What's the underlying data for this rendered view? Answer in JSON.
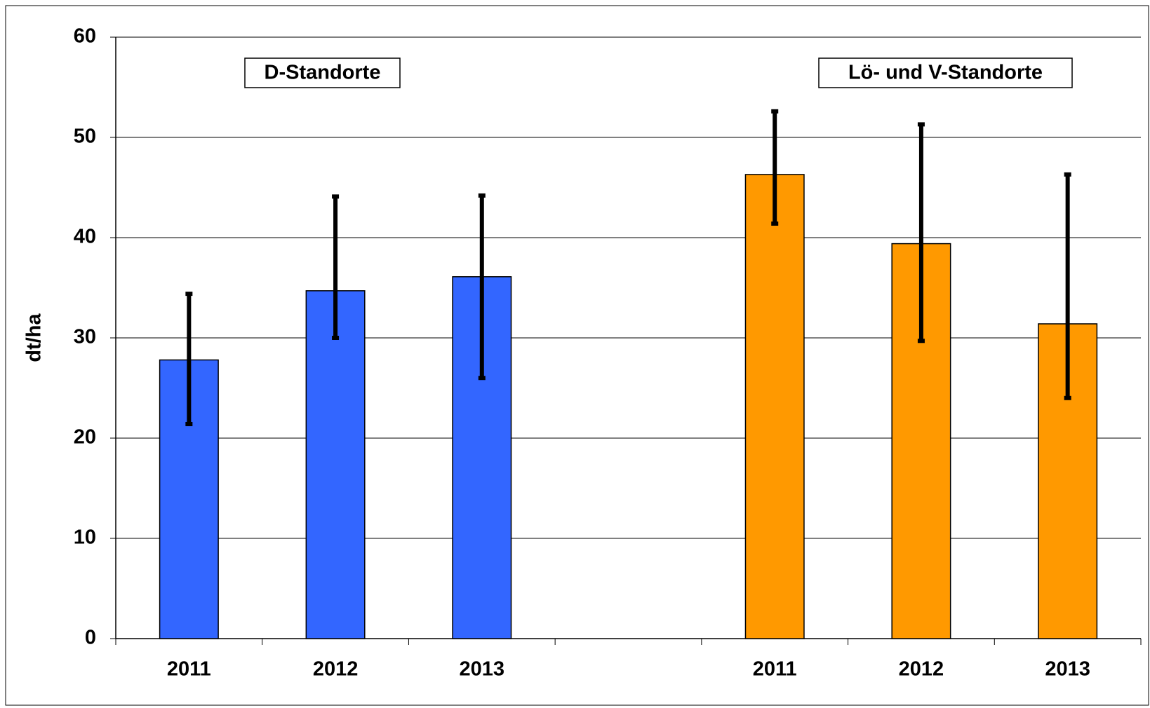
{
  "chart_data": {
    "type": "bar",
    "ylabel": "dt/ha",
    "annotations": [
      "D-Standorte",
      "Lö- und V-Standorte"
    ],
    "categories": [
      "2011",
      "2012",
      "2013",
      null,
      "2011",
      "2012",
      "2013"
    ],
    "series": [
      {
        "color": "#3366ff",
        "values": [
          27.8,
          34.7,
          36.1,
          null,
          null,
          null,
          null
        ],
        "error_low": [
          21.4,
          30.0,
          26.0,
          null,
          null,
          null,
          null
        ],
        "error_high": [
          34.4,
          44.1,
          44.2,
          null,
          null,
          null,
          null
        ]
      },
      {
        "color": "#ff9900",
        "values": [
          null,
          null,
          null,
          null,
          46.3,
          39.4,
          31.4
        ],
        "error_low": [
          null,
          null,
          null,
          null,
          41.4,
          29.7,
          24.0
        ],
        "error_high": [
          null,
          null,
          null,
          null,
          52.6,
          51.3,
          46.3
        ]
      }
    ],
    "ylim": [
      0,
      60
    ],
    "yticks": [
      0,
      10,
      20,
      30,
      40,
      50,
      60
    ],
    "grid": true
  }
}
